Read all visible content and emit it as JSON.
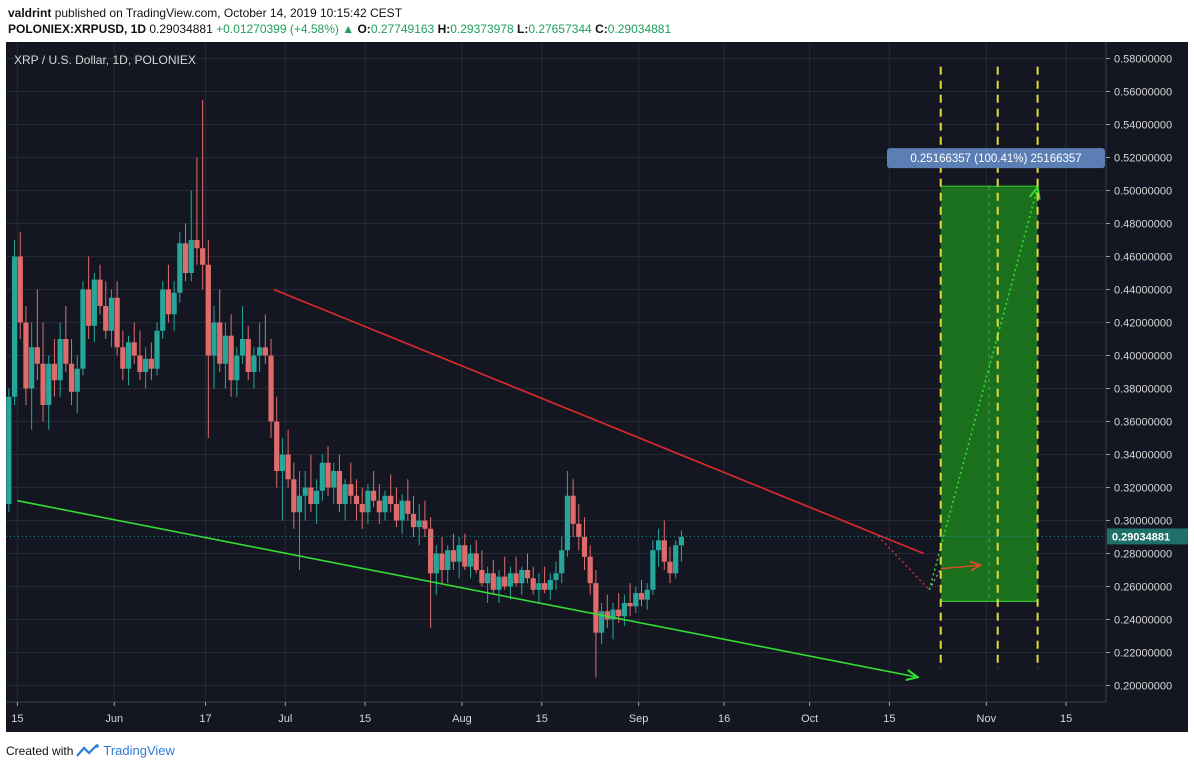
{
  "header": {
    "author": "valdrint",
    "published": "published on TradingView.com, October 14, 2019 10:15:42 CEST",
    "symbol": "POLONIEX:XRPUSD, 1D",
    "last": "0.29034881",
    "change": "+0.01270399 (+4.58%)",
    "o_label": "O:",
    "o": "0.27749163",
    "h_label": "H:",
    "h": "0.29373978",
    "l_label": "L:",
    "l": "0.27657344",
    "c_label": "C:",
    "c": "0.29034881"
  },
  "footer": {
    "created": "Created with",
    "brand": "TradingView"
  },
  "colors": {
    "background": "#141722",
    "grid": "#262a36",
    "up": "#26a69a",
    "down": "#e06b6b",
    "resistance": "#e02a2a",
    "support": "#33dd33",
    "projection": "#1e8f1e",
    "yellow_lines": "#e6d93a",
    "price_badge": "#1f6f6b",
    "measure_badge": "#5b7fb5"
  },
  "chart_data": {
    "type": "candlestick",
    "title": "XRP / U.S. Dollar, 1D, POLONIEX",
    "y_axis": {
      "range": [
        0.19,
        0.59
      ],
      "ticks": [
        "0.20000000",
        "0.22000000",
        "0.24000000",
        "0.26000000",
        "0.28000000",
        "0.30000000",
        "0.32000000",
        "0.34000000",
        "0.36000000",
        "0.38000000",
        "0.40000000",
        "0.42000000",
        "0.44000000",
        "0.46000000",
        "0.48000000",
        "0.50000000",
        "0.52000000",
        "0.54000000",
        "0.56000000",
        "0.58000000"
      ]
    },
    "x_axis": {
      "range": [
        "2019-05-13",
        "2019-11-22"
      ],
      "ticks": [
        {
          "date": "2019-05-15",
          "label": "15"
        },
        {
          "date": "2019-06-01",
          "label": "Jun"
        },
        {
          "date": "2019-06-17",
          "label": "17"
        },
        {
          "date": "2019-07-01",
          "label": "Jul"
        },
        {
          "date": "2019-07-15",
          "label": "15"
        },
        {
          "date": "2019-08-01",
          "label": "Aug"
        },
        {
          "date": "2019-08-15",
          "label": "15"
        },
        {
          "date": "2019-09-01",
          "label": "Sep"
        },
        {
          "date": "2019-09-16",
          "label": "16"
        },
        {
          "date": "2019-10-01",
          "label": "Oct"
        },
        {
          "date": "2019-10-15",
          "label": "15"
        },
        {
          "date": "2019-11-01",
          "label": "Nov"
        },
        {
          "date": "2019-11-15",
          "label": "15"
        }
      ]
    },
    "grid": true,
    "current_price": 0.29034881,
    "current_price_label": "0.29034881",
    "candles_start_date": "2019-05-13",
    "candles": [
      [
        0.31,
        0.38,
        0.305,
        0.375
      ],
      [
        0.375,
        0.47,
        0.37,
        0.46
      ],
      [
        0.46,
        0.475,
        0.41,
        0.42
      ],
      [
        0.42,
        0.43,
        0.37,
        0.38
      ],
      [
        0.38,
        0.42,
        0.355,
        0.405
      ],
      [
        0.405,
        0.44,
        0.385,
        0.395
      ],
      [
        0.395,
        0.42,
        0.36,
        0.37
      ],
      [
        0.37,
        0.4,
        0.355,
        0.395
      ],
      [
        0.395,
        0.41,
        0.375,
        0.385
      ],
      [
        0.385,
        0.42,
        0.375,
        0.41
      ],
      [
        0.41,
        0.43,
        0.39,
        0.395
      ],
      [
        0.395,
        0.41,
        0.37,
        0.378
      ],
      [
        0.378,
        0.4,
        0.365,
        0.392
      ],
      [
        0.392,
        0.445,
        0.388,
        0.44
      ],
      [
        0.44,
        0.46,
        0.41,
        0.418
      ],
      [
        0.418,
        0.45,
        0.408,
        0.446
      ],
      [
        0.446,
        0.455,
        0.425,
        0.43
      ],
      [
        0.43,
        0.445,
        0.41,
        0.415
      ],
      [
        0.415,
        0.44,
        0.405,
        0.435
      ],
      [
        0.435,
        0.445,
        0.4,
        0.405
      ],
      [
        0.405,
        0.415,
        0.385,
        0.392
      ],
      [
        0.392,
        0.412,
        0.382,
        0.408
      ],
      [
        0.408,
        0.42,
        0.395,
        0.4
      ],
      [
        0.4,
        0.415,
        0.385,
        0.39
      ],
      [
        0.39,
        0.405,
        0.38,
        0.398
      ],
      [
        0.398,
        0.408,
        0.385,
        0.392
      ],
      [
        0.392,
        0.42,
        0.388,
        0.415
      ],
      [
        0.415,
        0.445,
        0.41,
        0.44
      ],
      [
        0.44,
        0.455,
        0.42,
        0.425
      ],
      [
        0.425,
        0.445,
        0.415,
        0.438
      ],
      [
        0.438,
        0.475,
        0.432,
        0.468
      ],
      [
        0.468,
        0.48,
        0.445,
        0.45
      ],
      [
        0.45,
        0.5,
        0.445,
        0.47
      ],
      [
        0.47,
        0.52,
        0.455,
        0.465
      ],
      [
        0.465,
        0.555,
        0.44,
        0.455
      ],
      [
        0.455,
        0.47,
        0.35,
        0.4
      ],
      [
        0.4,
        0.43,
        0.38,
        0.42
      ],
      [
        0.42,
        0.44,
        0.39,
        0.395
      ],
      [
        0.395,
        0.42,
        0.38,
        0.412
      ],
      [
        0.412,
        0.425,
        0.375,
        0.385
      ],
      [
        0.385,
        0.405,
        0.375,
        0.4
      ],
      [
        0.4,
        0.43,
        0.395,
        0.41
      ],
      [
        0.41,
        0.418,
        0.385,
        0.39
      ],
      [
        0.39,
        0.405,
        0.38,
        0.4
      ],
      [
        0.4,
        0.42,
        0.39,
        0.405
      ],
      [
        0.405,
        0.425,
        0.395,
        0.4
      ],
      [
        0.4,
        0.41,
        0.35,
        0.36
      ],
      [
        0.36,
        0.375,
        0.32,
        0.33
      ],
      [
        0.33,
        0.35,
        0.3,
        0.34
      ],
      [
        0.34,
        0.355,
        0.32,
        0.325
      ],
      [
        0.325,
        0.335,
        0.295,
        0.305
      ],
      [
        0.305,
        0.33,
        0.27,
        0.315
      ],
      [
        0.315,
        0.33,
        0.3,
        0.32
      ],
      [
        0.32,
        0.34,
        0.305,
        0.31
      ],
      [
        0.31,
        0.325,
        0.298,
        0.318
      ],
      [
        0.318,
        0.34,
        0.312,
        0.335
      ],
      [
        0.335,
        0.345,
        0.315,
        0.32
      ],
      [
        0.32,
        0.335,
        0.31,
        0.33
      ],
      [
        0.33,
        0.34,
        0.305,
        0.31
      ],
      [
        0.31,
        0.325,
        0.3,
        0.322
      ],
      [
        0.322,
        0.335,
        0.31,
        0.315
      ],
      [
        0.315,
        0.325,
        0.3,
        0.31
      ],
      [
        0.31,
        0.32,
        0.295,
        0.305
      ],
      [
        0.305,
        0.322,
        0.298,
        0.318
      ],
      [
        0.318,
        0.33,
        0.308,
        0.312
      ],
      [
        0.312,
        0.322,
        0.298,
        0.305
      ],
      [
        0.305,
        0.318,
        0.3,
        0.315
      ],
      [
        0.315,
        0.328,
        0.305,
        0.31
      ],
      [
        0.31,
        0.32,
        0.296,
        0.3
      ],
      [
        0.3,
        0.316,
        0.292,
        0.312
      ],
      [
        0.312,
        0.325,
        0.3,
        0.304
      ],
      [
        0.304,
        0.315,
        0.29,
        0.296
      ],
      [
        0.296,
        0.31,
        0.285,
        0.3
      ],
      [
        0.3,
        0.312,
        0.29,
        0.295
      ],
      [
        0.295,
        0.302,
        0.235,
        0.268
      ],
      [
        0.268,
        0.285,
        0.255,
        0.28
      ],
      [
        0.28,
        0.29,
        0.262,
        0.27
      ],
      [
        0.27,
        0.285,
        0.262,
        0.282
      ],
      [
        0.282,
        0.292,
        0.27,
        0.275
      ],
      [
        0.275,
        0.29,
        0.265,
        0.285
      ],
      [
        0.285,
        0.292,
        0.27,
        0.272
      ],
      [
        0.272,
        0.285,
        0.265,
        0.28
      ],
      [
        0.28,
        0.288,
        0.268,
        0.27
      ],
      [
        0.27,
        0.282,
        0.26,
        0.262
      ],
      [
        0.262,
        0.272,
        0.25,
        0.268
      ],
      [
        0.268,
        0.276,
        0.255,
        0.258
      ],
      [
        0.258,
        0.27,
        0.25,
        0.266
      ],
      [
        0.266,
        0.278,
        0.258,
        0.26
      ],
      [
        0.26,
        0.272,
        0.252,
        0.268
      ],
      [
        0.268,
        0.278,
        0.26,
        0.262
      ],
      [
        0.262,
        0.272,
        0.255,
        0.27
      ],
      [
        0.27,
        0.28,
        0.262,
        0.265
      ],
      [
        0.265,
        0.272,
        0.255,
        0.258
      ],
      [
        0.258,
        0.268,
        0.25,
        0.262
      ],
      [
        0.262,
        0.272,
        0.256,
        0.258
      ],
      [
        0.258,
        0.268,
        0.252,
        0.264
      ],
      [
        0.264,
        0.275,
        0.258,
        0.268
      ],
      [
        0.268,
        0.29,
        0.262,
        0.282
      ],
      [
        0.282,
        0.33,
        0.278,
        0.315
      ],
      [
        0.315,
        0.325,
        0.29,
        0.298
      ],
      [
        0.298,
        0.31,
        0.282,
        0.29
      ],
      [
        0.29,
        0.302,
        0.27,
        0.278
      ],
      [
        0.278,
        0.285,
        0.255,
        0.262
      ],
      [
        0.262,
        0.27,
        0.205,
        0.232
      ],
      [
        0.232,
        0.25,
        0.225,
        0.245
      ],
      [
        0.245,
        0.255,
        0.235,
        0.24
      ],
      [
        0.24,
        0.25,
        0.228,
        0.246
      ],
      [
        0.246,
        0.256,
        0.238,
        0.242
      ],
      [
        0.242,
        0.255,
        0.236,
        0.25
      ],
      [
        0.25,
        0.262,
        0.242,
        0.248
      ],
      [
        0.248,
        0.26,
        0.244,
        0.256
      ],
      [
        0.256,
        0.264,
        0.248,
        0.252
      ],
      [
        0.252,
        0.262,
        0.246,
        0.258
      ],
      [
        0.258,
        0.288,
        0.255,
        0.282
      ],
      [
        0.282,
        0.295,
        0.272,
        0.288
      ],
      [
        0.288,
        0.3,
        0.27,
        0.275
      ],
      [
        0.275,
        0.284,
        0.262,
        0.268
      ],
      [
        0.268,
        0.288,
        0.265,
        0.285
      ],
      [
        0.285,
        0.294,
        0.275,
        0.29
      ]
    ],
    "drawings": {
      "resistance_line": {
        "from": [
          "2019-06-29",
          0.44
        ],
        "to": [
          "2019-10-21",
          0.28
        ]
      },
      "support_line": {
        "from": [
          "2019-05-15",
          0.312
        ],
        "to": [
          "2019-10-20",
          0.205
        ]
      },
      "dashed_verticals": [
        "2019-10-24",
        "2019-11-03",
        "2019-11-10"
      ],
      "target_box": {
        "from_date": "2019-10-24",
        "to_date": "2019-11-10",
        "low": 0.251,
        "high": 0.5026
      },
      "measure_label": "0.25166357 (100.41%) 25166357"
    }
  }
}
